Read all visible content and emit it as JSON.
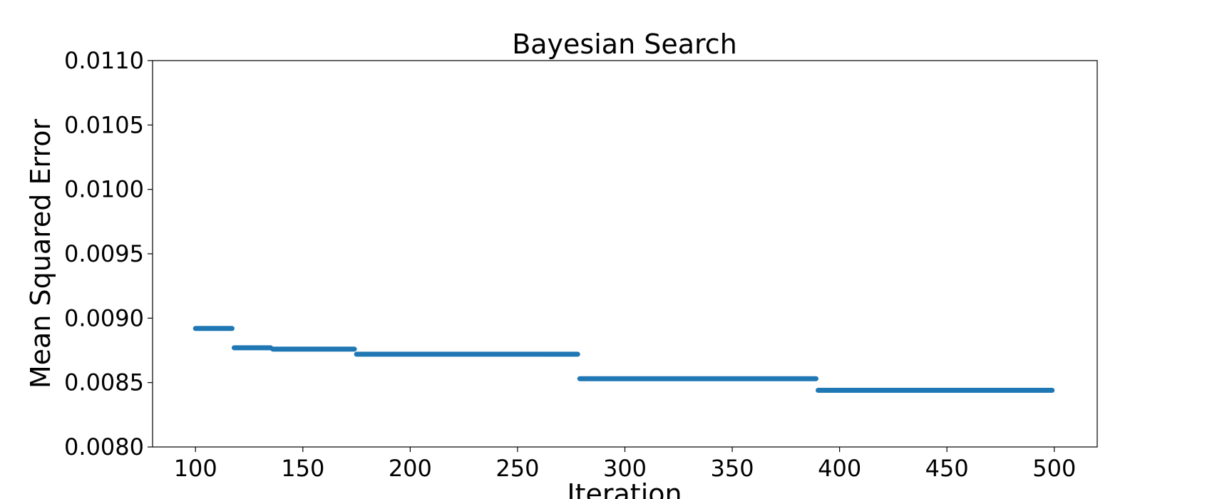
{
  "chart_data": {
    "type": "scatter",
    "title": "Bayesian Search",
    "xlabel": "Iteration",
    "ylabel": "Mean Squared Error",
    "xlim": [
      80,
      520
    ],
    "ylim": [
      0.008,
      0.011
    ],
    "xticks": [
      100,
      150,
      200,
      250,
      300,
      350,
      400,
      450,
      500
    ],
    "yticks": [
      0.008,
      0.0085,
      0.009,
      0.0095,
      0.01,
      0.0105,
      0.011
    ],
    "xtick_labels": [
      "100",
      "150",
      "200",
      "250",
      "300",
      "350",
      "400",
      "450",
      "500"
    ],
    "ytick_labels": [
      "0.0080",
      "0.0085",
      "0.0090",
      "0.0095",
      "0.0100",
      "0.0105",
      "0.0110"
    ],
    "grid": false,
    "color": "#1f77b4",
    "segments": [
      {
        "x_start": 100,
        "x_end": 117,
        "y": 0.00892
      },
      {
        "x_start": 118,
        "x_end": 135,
        "y": 0.00877
      },
      {
        "x_start": 136,
        "x_end": 174,
        "y": 0.00876
      },
      {
        "x_start": 175,
        "x_end": 278,
        "y": 0.00872
      },
      {
        "x_start": 279,
        "x_end": 389,
        "y": 0.00853
      },
      {
        "x_start": 390,
        "x_end": 499,
        "y": 0.00844
      }
    ]
  }
}
